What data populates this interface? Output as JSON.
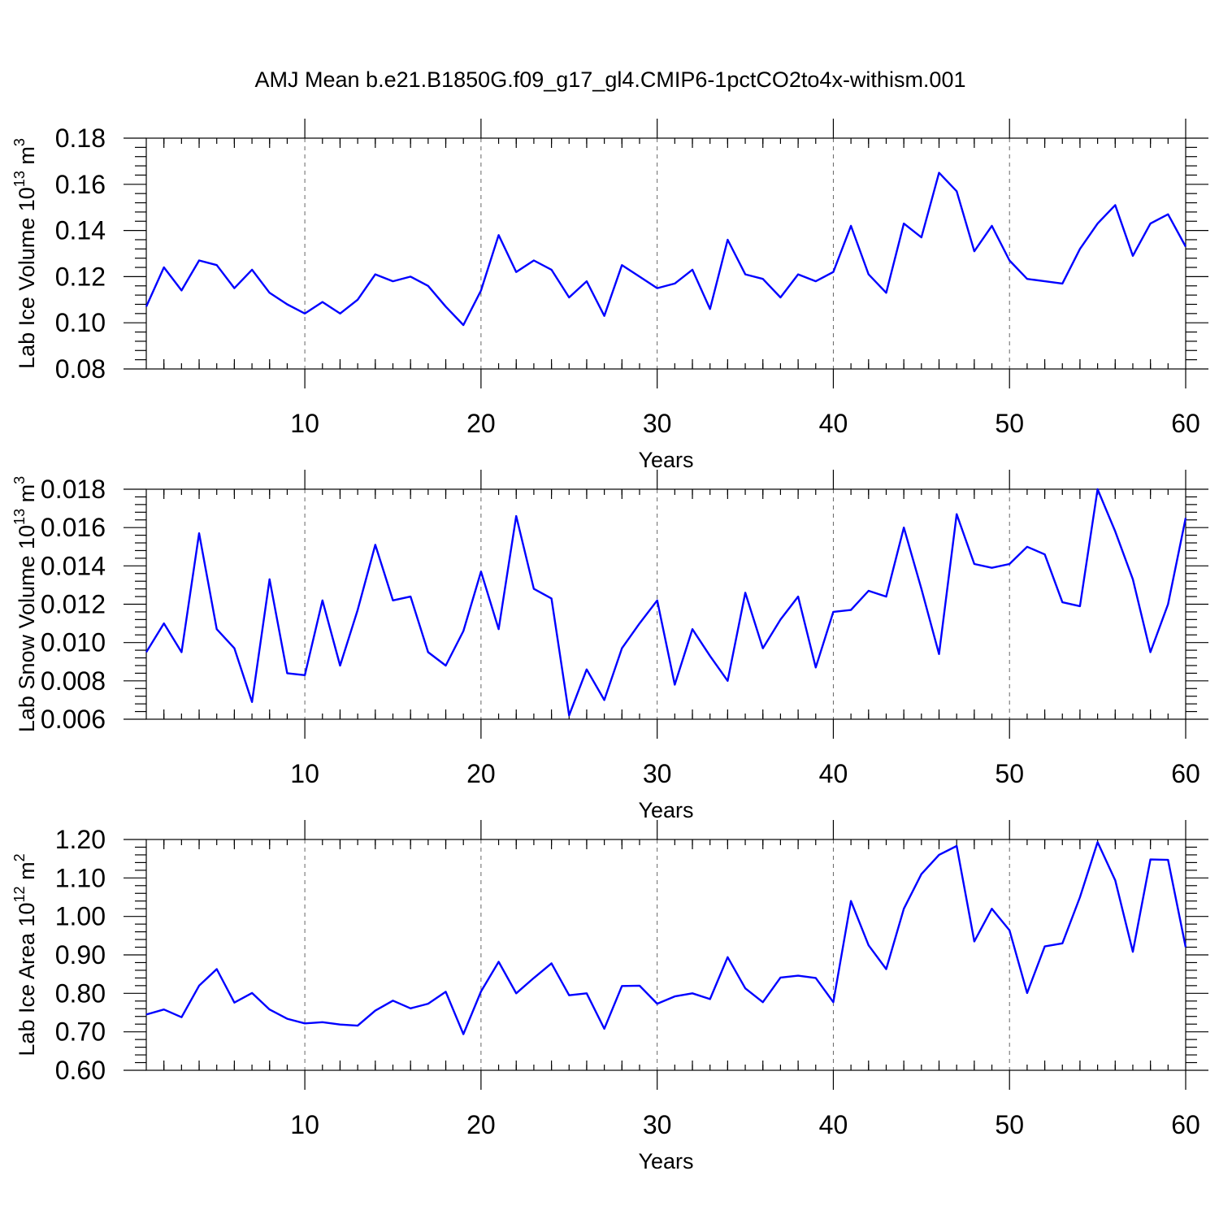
{
  "chart_data": [
    {
      "type": "line",
      "title": "AMJ Mean b.e21.B1850G.f09_g17_gl4.CMIP6-1pctCO2to4x-withism.001",
      "ylabel": "Lab Ice Volume 10",
      "ylabel_sup": "13",
      "ylabel_unit": "m",
      "ylabel_unit_sup": "3",
      "xlabel": "Years",
      "xlim": [
        1,
        60
      ],
      "ylim": [
        0.08,
        0.18
      ],
      "yticks": [
        0.08,
        0.1,
        0.12,
        0.14,
        0.16,
        0.18
      ],
      "ytick_labels": [
        "0.08",
        "0.10",
        "0.12",
        "0.14",
        "0.16",
        "0.18"
      ],
      "xticks": [
        10,
        20,
        30,
        40,
        50,
        60
      ],
      "xtick_labels": [
        "10",
        "20",
        "30",
        "40",
        "50",
        "60"
      ],
      "grid": "vertical dashed at major x ticks",
      "color": "#0000ff",
      "x": [
        1,
        2,
        3,
        4,
        5,
        6,
        7,
        8,
        9,
        10,
        11,
        12,
        13,
        14,
        15,
        16,
        17,
        18,
        19,
        20,
        21,
        22,
        23,
        24,
        25,
        26,
        27,
        28,
        29,
        30,
        31,
        32,
        33,
        34,
        35,
        36,
        37,
        38,
        39,
        40,
        41,
        42,
        43,
        44,
        45,
        46,
        47,
        48,
        49,
        50,
        51,
        52,
        53,
        54,
        55,
        56,
        57,
        58,
        59,
        60
      ],
      "values": [
        0.107,
        0.124,
        0.114,
        0.127,
        0.125,
        0.115,
        0.123,
        0.113,
        0.108,
        0.104,
        0.109,
        0.104,
        0.11,
        0.121,
        0.118,
        0.12,
        0.116,
        0.107,
        0.099,
        0.114,
        0.138,
        0.122,
        0.127,
        0.123,
        0.111,
        0.118,
        0.103,
        0.125,
        0.12,
        0.115,
        0.117,
        0.123,
        0.106,
        0.136,
        0.121,
        0.119,
        0.111,
        0.121,
        0.118,
        0.122,
        0.142,
        0.121,
        0.113,
        0.143,
        0.137,
        0.165,
        0.157,
        0.131,
        0.142,
        0.127,
        0.119,
        0.118,
        0.117,
        0.132,
        0.143,
        0.151,
        0.129,
        0.143,
        0.147,
        0.133
      ]
    },
    {
      "type": "line",
      "ylabel": "Lab Snow Volume 10",
      "ylabel_sup": "13",
      "ylabel_unit": "m",
      "ylabel_unit_sup": "3",
      "xlabel": "Years",
      "xlim": [
        1,
        60
      ],
      "ylim": [
        0.006,
        0.018
      ],
      "yticks": [
        0.006,
        0.008,
        0.01,
        0.012,
        0.014,
        0.016,
        0.018
      ],
      "ytick_labels": [
        "0.006",
        "0.008",
        "0.010",
        "0.012",
        "0.014",
        "0.016",
        "0.018"
      ],
      "xticks": [
        10,
        20,
        30,
        40,
        50,
        60
      ],
      "xtick_labels": [
        "10",
        "20",
        "30",
        "40",
        "50",
        "60"
      ],
      "grid": "vertical dashed at major x ticks",
      "color": "#0000ff",
      "x": [
        1,
        2,
        3,
        4,
        5,
        6,
        7,
        8,
        9,
        10,
        11,
        12,
        13,
        14,
        15,
        16,
        17,
        18,
        19,
        20,
        21,
        22,
        23,
        24,
        25,
        26,
        27,
        28,
        29,
        30,
        31,
        32,
        33,
        34,
        35,
        36,
        37,
        38,
        39,
        40,
        41,
        42,
        43,
        44,
        45,
        46,
        47,
        48,
        49,
        50,
        51,
        52,
        53,
        54,
        55,
        56,
        57,
        58,
        59,
        60
      ],
      "values": [
        0.0095,
        0.011,
        0.0095,
        0.0157,
        0.0107,
        0.0097,
        0.0069,
        0.0133,
        0.0084,
        0.0083,
        0.0122,
        0.0088,
        0.0117,
        0.0151,
        0.0122,
        0.0124,
        0.0095,
        0.0088,
        0.0106,
        0.0137,
        0.0107,
        0.0166,
        0.0128,
        0.0123,
        0.0062,
        0.0086,
        0.007,
        0.0097,
        0.011,
        0.0122,
        0.0078,
        0.0107,
        0.0093,
        0.008,
        0.0126,
        0.0097,
        0.0112,
        0.0124,
        0.0087,
        0.0116,
        0.0117,
        0.0127,
        0.0124,
        0.016,
        0.0128,
        0.0094,
        0.0167,
        0.0141,
        0.0139,
        0.0141,
        0.015,
        0.0146,
        0.0121,
        0.0119,
        0.018,
        0.0158,
        0.0133,
        0.0095,
        0.012,
        0.0165
      ]
    },
    {
      "type": "line",
      "ylabel": "Lab Ice Area 10",
      "ylabel_sup": "12",
      "ylabel_unit": "m",
      "ylabel_unit_sup": "2",
      "xlabel": "Years",
      "xlim": [
        1,
        60
      ],
      "ylim": [
        0.6,
        1.2
      ],
      "yticks": [
        0.6,
        0.7,
        0.8,
        0.9,
        1.0,
        1.1,
        1.2
      ],
      "ytick_labels": [
        "0.60",
        "0.70",
        "0.80",
        "0.90",
        "1.00",
        "1.10",
        "1.20"
      ],
      "xticks": [
        10,
        20,
        30,
        40,
        50,
        60
      ],
      "xtick_labels": [
        "10",
        "20",
        "30",
        "40",
        "50",
        "60"
      ],
      "grid": "vertical dashed at major x ticks",
      "color": "#0000ff",
      "x": [
        1,
        2,
        3,
        4,
        5,
        6,
        7,
        8,
        9,
        10,
        11,
        12,
        13,
        14,
        15,
        16,
        17,
        18,
        19,
        20,
        21,
        22,
        23,
        24,
        25,
        26,
        27,
        28,
        29,
        30,
        31,
        32,
        33,
        34,
        35,
        36,
        37,
        38,
        39,
        40,
        41,
        42,
        43,
        44,
        45,
        46,
        47,
        48,
        49,
        50,
        51,
        52,
        53,
        54,
        55,
        56,
        57,
        58,
        59,
        60
      ],
      "values": [
        0.745,
        0.758,
        0.738,
        0.82,
        0.863,
        0.776,
        0.801,
        0.758,
        0.734,
        0.722,
        0.725,
        0.719,
        0.716,
        0.755,
        0.781,
        0.761,
        0.773,
        0.804,
        0.694,
        0.805,
        0.882,
        0.8,
        0.84,
        0.878,
        0.795,
        0.8,
        0.708,
        0.819,
        0.82,
        0.773,
        0.792,
        0.8,
        0.785,
        0.894,
        0.813,
        0.777,
        0.841,
        0.846,
        0.84,
        0.777,
        1.04,
        0.925,
        0.863,
        1.02,
        1.11,
        1.16,
        1.183,
        0.935,
        1.02,
        0.964,
        0.801,
        0.922,
        0.93,
        1.05,
        1.193,
        1.094,
        0.908,
        1.148,
        1.147,
        0.92
      ]
    }
  ]
}
